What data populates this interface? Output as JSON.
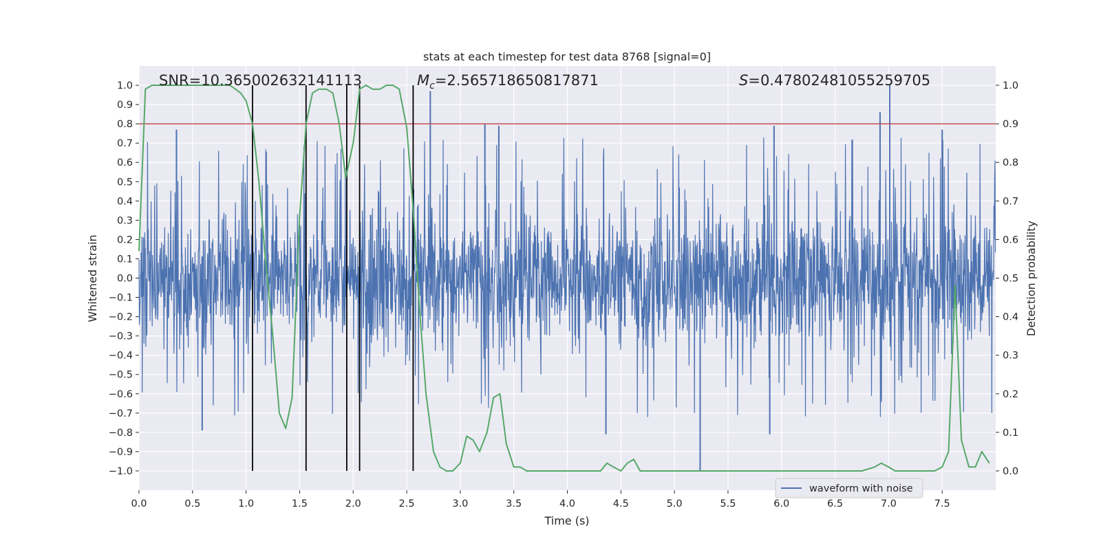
{
  "chart_data": {
    "type": "line",
    "title": "stats at each timestep for test data 8768 [signal=0]",
    "xlabel": "Time (s)",
    "ylabel_left": "Whitened strain",
    "ylabel_right": "Detection probability",
    "xlim": [
      0,
      8
    ],
    "ylim_left": [
      -1.1,
      1.1
    ],
    "ylim_right": [
      -0.05,
      1.05
    ],
    "xticks": [
      "0.0",
      "0.5",
      "1.0",
      "1.5",
      "2.0",
      "2.5",
      "3.0",
      "3.5",
      "4.0",
      "4.5",
      "5.0",
      "5.5",
      "6.0",
      "6.5",
      "7.0",
      "7.5"
    ],
    "yticks_left": [
      "1.0",
      "0.9",
      "0.8",
      "0.7",
      "0.6",
      "0.5",
      "0.4",
      "0.3",
      "0.2",
      "0.1",
      "0.0",
      "−0.1",
      "−0.2",
      "−0.3",
      "−0.4",
      "−0.5",
      "−0.6",
      "−0.7",
      "−0.8",
      "−0.9",
      "−1.0"
    ],
    "yticks_right": [
      "1.0",
      "0.9",
      "0.8",
      "0.7",
      "0.6",
      "0.5",
      "0.4",
      "0.3",
      "0.2",
      "0.1",
      "0.0"
    ],
    "grid": true,
    "legend_position": "lower-right",
    "stats": {
      "snr_text": "SNR=10.365002632141113",
      "mc_symbol": "M",
      "mc_subscript": "c",
      "mc_value": "=2.565718650817871",
      "s_symbol": "S",
      "s_value": "=0.47802481055259705"
    },
    "threshold": {
      "value": 0.8,
      "axis": "left",
      "color": "#c44e52"
    },
    "vlines_x": [
      1.06,
      1.56,
      1.94,
      2.06,
      2.56
    ],
    "series": [
      {
        "name": "waveform with noise",
        "color": "#4c72b0",
        "axis": "left",
        "noise_envelope": {
          "typical_peak": 0.45,
          "max_peak": 1.0,
          "min_trough": -1.0
        },
        "notable_peaks": [
          {
            "x": 2.72,
            "y": 0.97
          },
          {
            "x": 3.23,
            "y": 0.8
          },
          {
            "x": 3.36,
            "y": 0.79
          },
          {
            "x": 5.93,
            "y": 0.79
          },
          {
            "x": 6.92,
            "y": 0.86
          },
          {
            "x": 7.01,
            "y": 1.0
          },
          {
            "x": 7.5,
            "y": 0.77
          },
          {
            "x": 0.35,
            "y": 0.77
          },
          {
            "x": 5.24,
            "y": -1.0
          },
          {
            "x": 4.36,
            "y": -0.81
          },
          {
            "x": 5.89,
            "y": -0.81
          },
          {
            "x": 0.59,
            "y": -0.79
          }
        ]
      },
      {
        "name": "",
        "color": "#55a868",
        "axis": "right",
        "x": [
          0.0,
          0.06,
          0.12,
          0.25,
          0.5,
          0.75,
          0.85,
          0.95,
          1.0,
          1.06,
          1.12,
          1.18,
          1.25,
          1.31,
          1.37,
          1.43,
          1.5,
          1.56,
          1.62,
          1.68,
          1.75,
          1.81,
          1.87,
          1.93,
          2.0,
          2.06,
          2.12,
          2.18,
          2.25,
          2.31,
          2.37,
          2.43,
          2.5,
          2.56,
          2.62,
          2.68,
          2.75,
          2.81,
          2.87,
          2.93,
          3.0,
          3.06,
          3.12,
          3.18,
          3.25,
          3.31,
          3.37,
          3.43,
          3.5,
          3.56,
          3.62,
          3.68,
          3.75,
          3.81,
          3.87,
          3.93,
          4.0,
          4.06,
          4.12,
          4.18,
          4.25,
          4.31,
          4.37,
          4.43,
          4.5,
          4.56,
          4.62,
          4.68,
          4.75,
          4.81,
          4.87,
          4.93,
          5.0,
          5.06,
          5.12,
          5.18,
          5.25,
          5.31,
          5.5,
          5.75,
          6.0,
          6.25,
          6.5,
          6.75,
          6.87,
          6.93,
          7.0,
          7.06,
          7.12,
          7.25,
          7.37,
          7.43,
          7.5,
          7.56,
          7.62,
          7.68,
          7.75,
          7.81,
          7.87,
          7.94
        ],
        "y": [
          0.57,
          0.99,
          1.0,
          1.0,
          1.0,
          1.0,
          1.0,
          0.98,
          0.96,
          0.9,
          0.75,
          0.55,
          0.35,
          0.15,
          0.11,
          0.19,
          0.66,
          0.9,
          0.98,
          0.99,
          0.99,
          0.98,
          0.9,
          0.76,
          0.85,
          0.99,
          1.0,
          0.99,
          0.99,
          1.0,
          1.0,
          0.99,
          0.89,
          0.68,
          0.42,
          0.2,
          0.05,
          0.01,
          0.0,
          0.0,
          0.02,
          0.09,
          0.08,
          0.05,
          0.1,
          0.19,
          0.2,
          0.07,
          0.01,
          0.01,
          0.0,
          0.0,
          0.0,
          0.0,
          0.0,
          0.0,
          0.0,
          0.0,
          0.0,
          0.0,
          0.0,
          0.0,
          0.02,
          0.01,
          0.0,
          0.02,
          0.03,
          0.0,
          0.0,
          0.0,
          0.0,
          0.0,
          0.0,
          0.0,
          0.0,
          0.0,
          0.0,
          0.0,
          0.0,
          0.0,
          0.0,
          0.0,
          0.0,
          0.0,
          0.01,
          0.02,
          0.01,
          0.0,
          0.0,
          0.0,
          0.0,
          0.0,
          0.01,
          0.05,
          0.48,
          0.08,
          0.01,
          0.01,
          0.05,
          0.02
        ]
      }
    ]
  }
}
